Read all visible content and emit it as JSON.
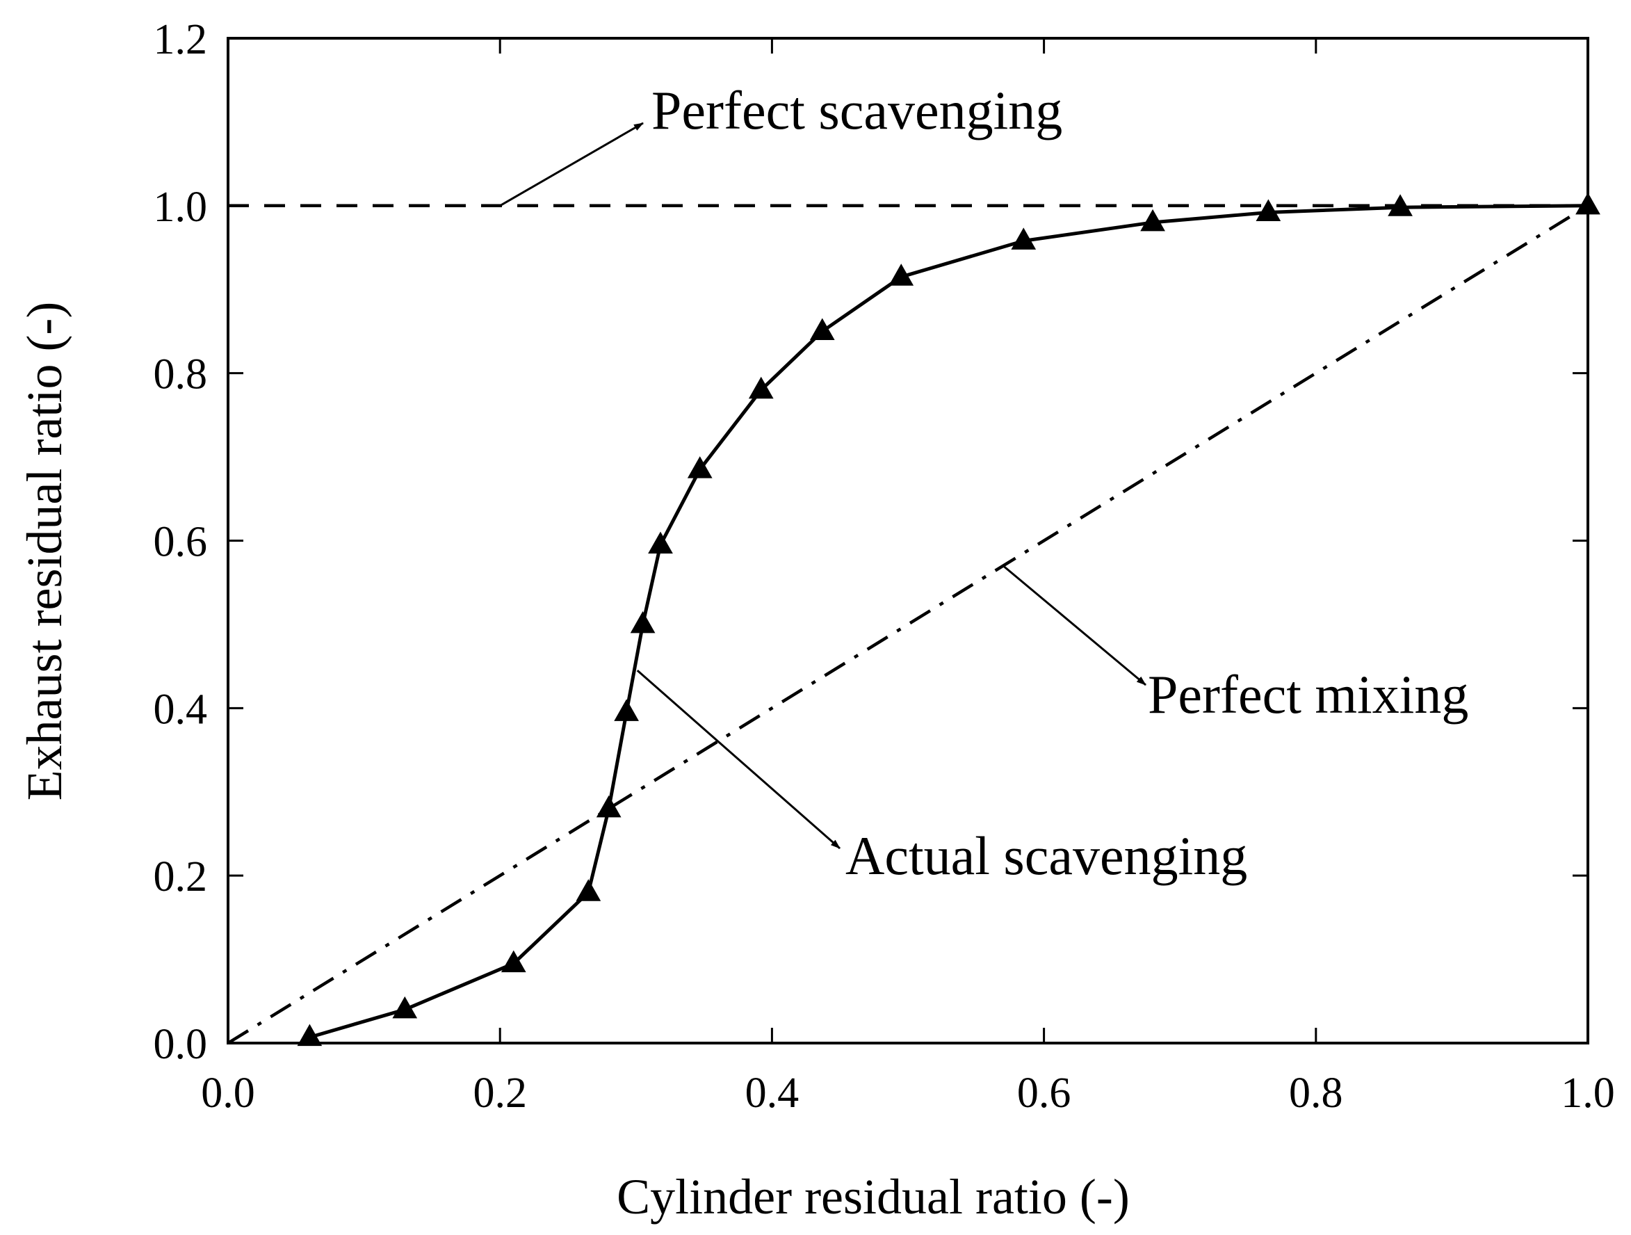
{
  "chart_data": {
    "type": "line",
    "title": "",
    "xlabel": "Cylinder residual ratio (-)",
    "ylabel": "Exhaust residual ratio (-)",
    "xlim": [
      0.0,
      1.0
    ],
    "ylim": [
      0.0,
      1.2
    ],
    "xticks": [
      0.0,
      0.2,
      0.4,
      0.6,
      0.8,
      1.0
    ],
    "yticks": [
      0.0,
      0.2,
      0.4,
      0.6,
      0.8,
      1.0,
      1.2
    ],
    "xtick_labels": [
      "0.0",
      "0.2",
      "0.4",
      "0.6",
      "0.8",
      "1.0"
    ],
    "ytick_labels": [
      "0.0",
      "0.2",
      "0.4",
      "0.6",
      "0.8",
      "1.0",
      "1.2"
    ],
    "grid": false,
    "series": [
      {
        "name": "Perfect scavenging",
        "style": "dashed",
        "marker": "none",
        "x": [
          0.0,
          1.0
        ],
        "y": [
          1.0,
          1.0
        ]
      },
      {
        "name": "Perfect mixing",
        "style": "dash-dot",
        "marker": "none",
        "x": [
          0.0,
          1.0
        ],
        "y": [
          0.0,
          1.0
        ]
      },
      {
        "name": "Actual scavenging",
        "style": "solid",
        "marker": "triangle",
        "x": [
          0.06,
          0.13,
          0.21,
          0.265,
          0.28,
          0.293,
          0.305,
          0.318,
          0.347,
          0.392,
          0.437,
          0.495,
          0.585,
          0.68,
          0.765,
          0.862,
          1.0
        ],
        "y": [
          0.007,
          0.04,
          0.095,
          0.18,
          0.28,
          0.395,
          0.5,
          0.595,
          0.685,
          0.78,
          0.85,
          0.915,
          0.958,
          0.98,
          0.992,
          0.998,
          1.0
        ]
      }
    ],
    "annotations": [
      {
        "text": "Perfect scavenging",
        "points_to": [
          0.2,
          1.0
        ]
      },
      {
        "text": "Perfect mixing",
        "points_to": [
          0.57,
          0.57
        ]
      },
      {
        "text": "Actual scavenging",
        "points_to": [
          0.301,
          0.445
        ]
      }
    ],
    "colors": {
      "line": "#000000",
      "background": "#ffffff"
    }
  }
}
